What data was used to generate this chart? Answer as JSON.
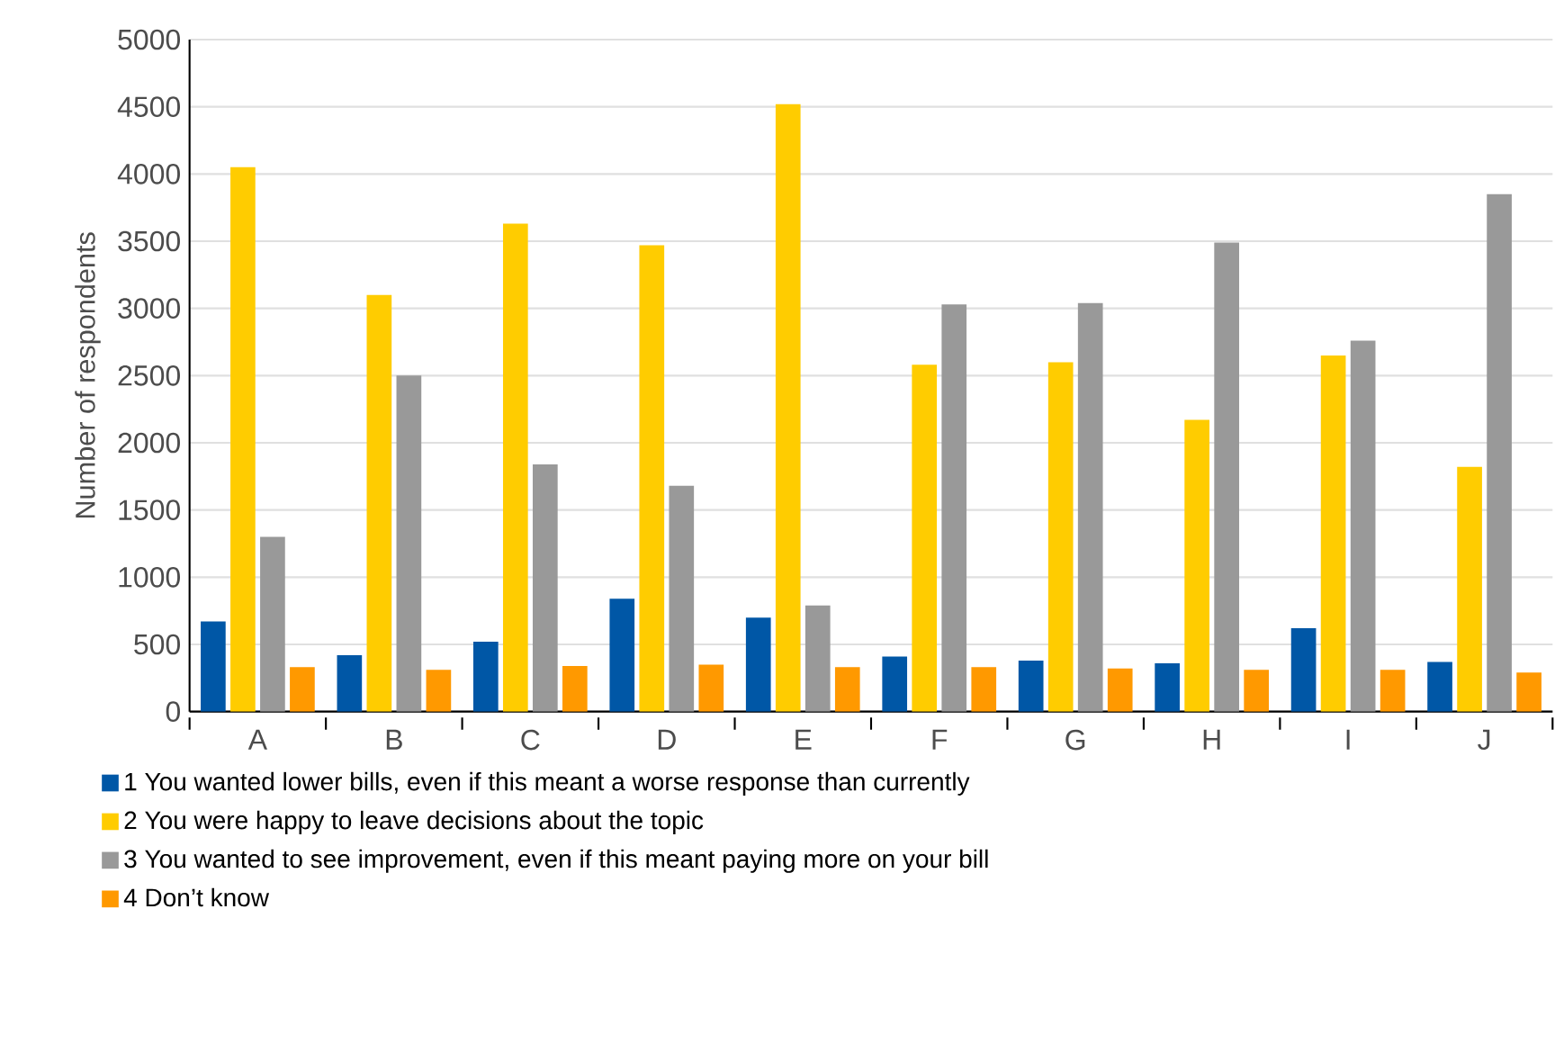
{
  "chart_data": {
    "type": "bar",
    "ylabel": "Number of respondents",
    "categories": [
      "A",
      "B",
      "C",
      "D",
      "E",
      "F",
      "G",
      "H",
      "I",
      "J"
    ],
    "series": [
      {
        "name": "1 You wanted lower bills, even if this meant a worse response than currently",
        "color": "#0057a6",
        "values": [
          670,
          420,
          520,
          840,
          700,
          410,
          380,
          360,
          620,
          370
        ]
      },
      {
        "name": "2 You were happy to leave decisions about the topic",
        "color": "#ffcc00",
        "values": [
          4050,
          3100,
          3630,
          3470,
          4520,
          2580,
          2600,
          2170,
          2650,
          1820
        ]
      },
      {
        "name": "3 You wanted to see improvement, even if this meant paying more on your bill",
        "color": "#999999",
        "values": [
          1300,
          2500,
          1840,
          1680,
          790,
          3030,
          3040,
          3490,
          2760,
          3850
        ]
      },
      {
        "name": "4 Don’t know",
        "color": "#ff9900",
        "values": [
          330,
          310,
          340,
          350,
          330,
          330,
          320,
          310,
          310,
          290
        ]
      }
    ],
    "ylim": [
      0,
      5000
    ],
    "yticks": [
      0,
      500,
      1000,
      1500,
      2000,
      2500,
      3000,
      3500,
      4000,
      4500,
      5000
    ],
    "grid": "y",
    "legend": "bottom"
  }
}
